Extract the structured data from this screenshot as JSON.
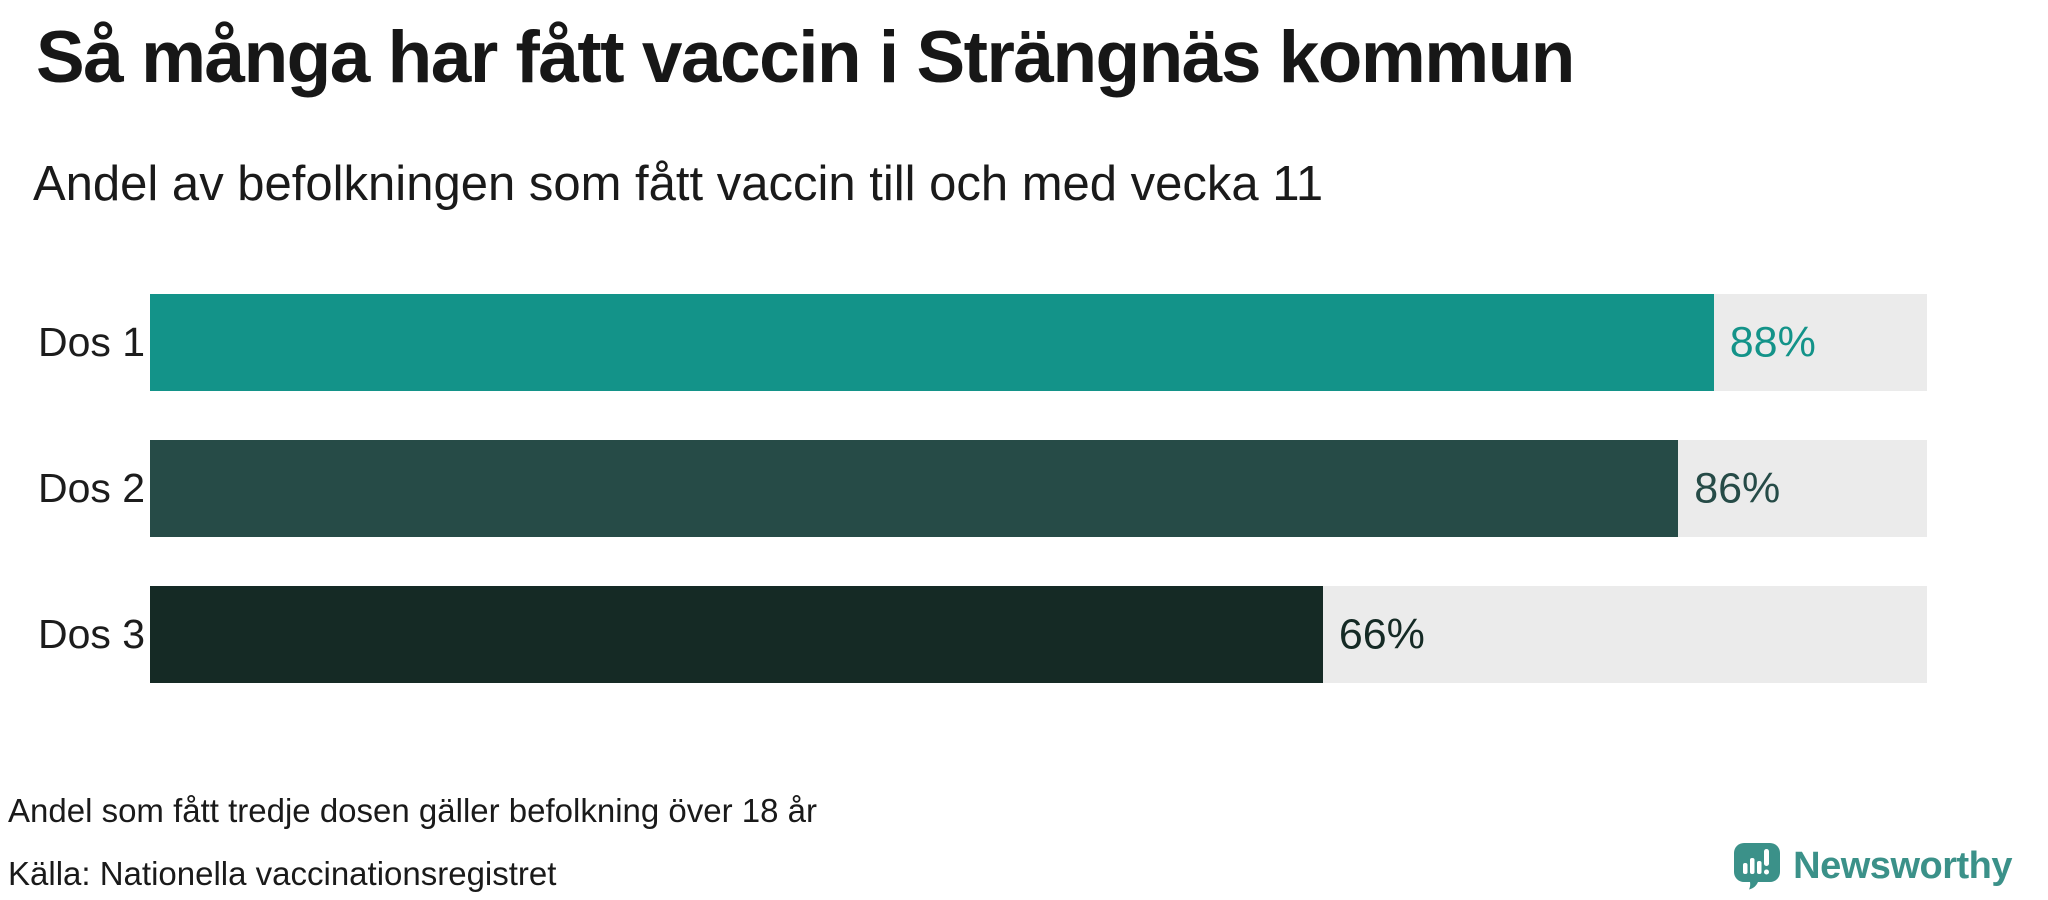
{
  "chart_data": {
    "type": "bar",
    "orientation": "horizontal",
    "title": "Så många har fått vaccin i Strängnäs kommun",
    "subtitle": "Andel av befolkningen som fått vaccin till och med vecka 11",
    "categories": [
      "Dos 1",
      "Dos 2",
      "Dos 3"
    ],
    "values": [
      88,
      86,
      66
    ],
    "value_labels": [
      "88%",
      "86%",
      "66%"
    ],
    "xlim": [
      0,
      100
    ],
    "bar_colors": [
      "#139389",
      "#264b47",
      "#152a25"
    ],
    "track_color": "#ebebeb",
    "grid": false,
    "legend": false,
    "footnote": "Andel som fått tredje dosen gäller befolkning över 18 år",
    "source": "Källa: Nationella vaccinationsregistret"
  },
  "branding": {
    "logo_text": "Newsworthy",
    "logo_color": "#3b9189"
  }
}
